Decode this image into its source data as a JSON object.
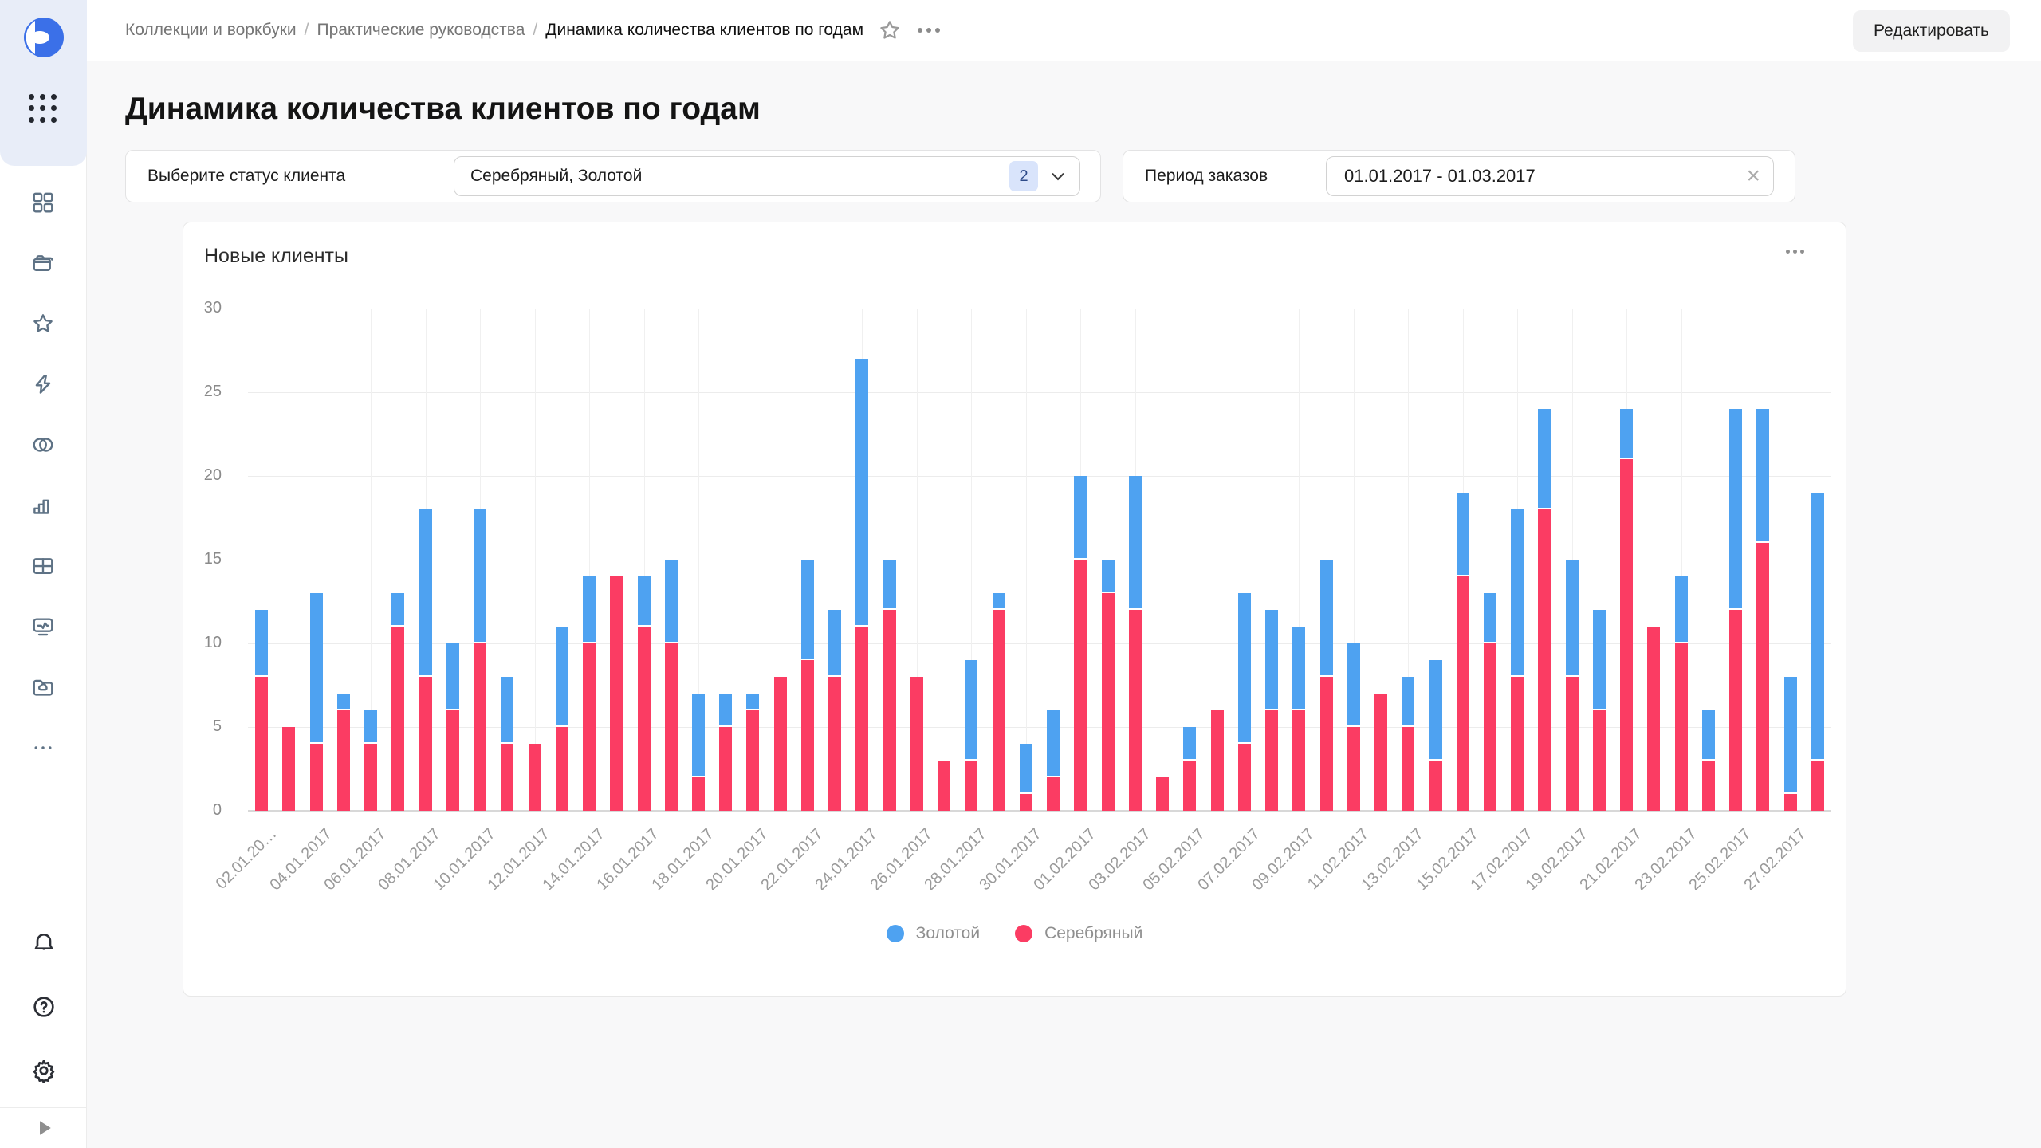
{
  "topbar": {
    "breadcrumbs": [
      "Коллекции и воркбуки",
      "Практические руководства",
      "Динамика количества клиентов по годам"
    ],
    "edit_button": "Редактировать"
  },
  "page": {
    "title": "Динамика количества клиентов по годам"
  },
  "filters": {
    "status": {
      "label": "Выберите статус клиента",
      "value": "Серебряный, Золотой",
      "count_badge": "2"
    },
    "period": {
      "label": "Период заказов",
      "value": "01.01.2017 - 01.03.2017"
    }
  },
  "chart_card": {
    "title": "Новые клиенты"
  },
  "chart_data": {
    "type": "bar",
    "stacked": true,
    "title": "Новые клиенты",
    "categories": [
      "02.01.2017",
      "03.01.2017",
      "04.01.2017",
      "05.01.2017",
      "06.01.2017",
      "07.01.2017",
      "08.01.2017",
      "09.01.2017",
      "10.01.2017",
      "11.01.2017",
      "12.01.2017",
      "13.01.2017",
      "14.01.2017",
      "15.01.2017",
      "16.01.2017",
      "17.01.2017",
      "18.01.2017",
      "19.01.2017",
      "20.01.2017",
      "21.01.2017",
      "22.01.2017",
      "23.01.2017",
      "24.01.2017",
      "25.01.2017",
      "26.01.2017",
      "27.01.2017",
      "28.01.2017",
      "29.01.2017",
      "30.01.2017",
      "31.01.2017",
      "01.02.2017",
      "02.02.2017",
      "03.02.2017",
      "04.02.2017",
      "05.02.2017",
      "06.02.2017",
      "07.02.2017",
      "08.02.2017",
      "09.02.2017",
      "10.02.2017",
      "11.02.2017",
      "12.02.2017",
      "13.02.2017",
      "14.02.2017",
      "15.02.2017",
      "16.02.2017",
      "17.02.2017",
      "18.02.2017",
      "19.02.2017",
      "20.02.2017",
      "21.02.2017",
      "22.02.2017",
      "23.02.2017",
      "24.02.2017",
      "25.02.2017",
      "26.02.2017",
      "27.02.2017",
      "28.02.2017"
    ],
    "series": [
      {
        "name": "Золотой",
        "color": "#4EA2F1",
        "values": [
          4,
          0,
          9,
          1,
          2,
          2,
          10,
          4,
          8,
          4,
          0,
          6,
          4,
          0,
          3,
          5,
          5,
          2,
          1,
          0,
          6,
          4,
          16,
          3,
          0,
          0,
          6,
          1,
          3,
          4,
          5,
          2,
          8,
          0,
          2,
          0,
          9,
          6,
          5,
          7,
          5,
          0,
          3,
          6,
          5,
          3,
          10,
          6,
          7,
          6,
          3,
          0,
          4,
          3,
          12,
          8,
          7,
          16
        ]
      },
      {
        "name": "Серебряный",
        "color": "#FB3C63",
        "values": [
          8,
          5,
          4,
          6,
          4,
          11,
          8,
          6,
          10,
          4,
          4,
          5,
          10,
          14,
          11,
          10,
          2,
          5,
          6,
          8,
          9,
          8,
          11,
          12,
          8,
          3,
          3,
          12,
          1,
          2,
          15,
          13,
          12,
          2,
          3,
          6,
          4,
          6,
          6,
          8,
          5,
          7,
          5,
          3,
          14,
          10,
          8,
          18,
          8,
          6,
          21,
          11,
          10,
          3,
          12,
          16,
          1,
          3
        ]
      }
    ],
    "stack_order": [
      "Серебряный",
      "Золотой"
    ],
    "ylim": [
      0,
      30
    ],
    "yticks": [
      0,
      5,
      10,
      15,
      20,
      25,
      30
    ],
    "xtick_every": 2,
    "xtick_labels": [
      "02.01.20…",
      "04.01.2017",
      "06.01.2017",
      "08.01.2017",
      "10.01.2017",
      "12.01.2017",
      "14.01.2017",
      "16.01.2017",
      "18.01.2017",
      "20.01.2017",
      "22.01.2017",
      "24.01.2017",
      "26.01.2017",
      "28.01.2017",
      "30.01.2017",
      "01.02.2017",
      "03.02.2017",
      "05.02.2017",
      "07.02.2017",
      "09.02.2017",
      "11.02.2017",
      "13.02.2017",
      "15.02.2017",
      "17.02.2017",
      "19.02.2017",
      "21.02.2017",
      "23.02.2017",
      "25.02.2017",
      "27.02.2017"
    ],
    "legend_position": "bottom",
    "grid": true
  },
  "colors": {
    "gold_series": "#4EA2F1",
    "silver_series": "#FB3C63",
    "rail_top_bg": "#e8edf8",
    "logo_blue": "#3b70e8",
    "badge_bg": "#d9e4fb",
    "edit_button_bg": "#f2f2f3"
  }
}
